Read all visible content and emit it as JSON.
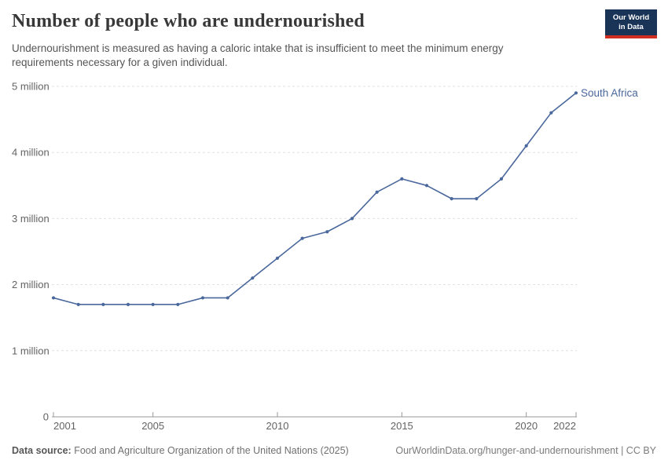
{
  "header": {
    "title": "Number of people who are undernourished",
    "subtitle": "Undernourishment is measured as having a caloric intake that is insufficient to meet the minimum energy requirements necessary for a given individual.",
    "logo_line1": "Our World",
    "logo_line2": "in Data"
  },
  "chart_data": {
    "type": "line",
    "title": "Number of people who are undernourished",
    "xlabel": "",
    "ylabel": "",
    "x": [
      2001,
      2002,
      2003,
      2004,
      2005,
      2006,
      2007,
      2008,
      2009,
      2010,
      2011,
      2012,
      2013,
      2014,
      2015,
      2016,
      2017,
      2018,
      2019,
      2020,
      2021,
      2022
    ],
    "series": [
      {
        "name": "South Africa",
        "values": [
          1800000,
          1700000,
          1700000,
          1700000,
          1700000,
          1700000,
          1800000,
          1800000,
          2100000,
          2400000,
          2700000,
          2800000,
          3000000,
          3400000,
          3600000,
          3500000,
          3300000,
          3300000,
          3600000,
          4100000,
          4600000,
          4900000
        ]
      }
    ],
    "xlim": [
      2001,
      2022
    ],
    "ylim": [
      0,
      5000000
    ],
    "grid": true,
    "legend_position": "end-of-line label",
    "y_ticks": [
      {
        "value": 0,
        "label": "0"
      },
      {
        "value": 1000000,
        "label": "1 million"
      },
      {
        "value": 2000000,
        "label": "2 million"
      },
      {
        "value": 3000000,
        "label": "3 million"
      },
      {
        "value": 4000000,
        "label": "4 million"
      },
      {
        "value": 5000000,
        "label": "5 million"
      }
    ],
    "x_tick_labels": [
      "2001",
      "2005",
      "2010",
      "2015",
      "2020",
      "2022"
    ]
  },
  "footer": {
    "datasource_label": "Data source:",
    "datasource_text": " Food and Agriculture Organization of the United Nations (2025)",
    "link_text": "OurWorldinData.org/hunger-and-undernourishment | CC BY"
  },
  "colors": {
    "line": "#4a689c",
    "grid": "#e1e1e1",
    "axis": "#9a9a9a",
    "tick_label": "#636363",
    "logo_navy": "#1a3458",
    "logo_red": "#cf2e21"
  }
}
